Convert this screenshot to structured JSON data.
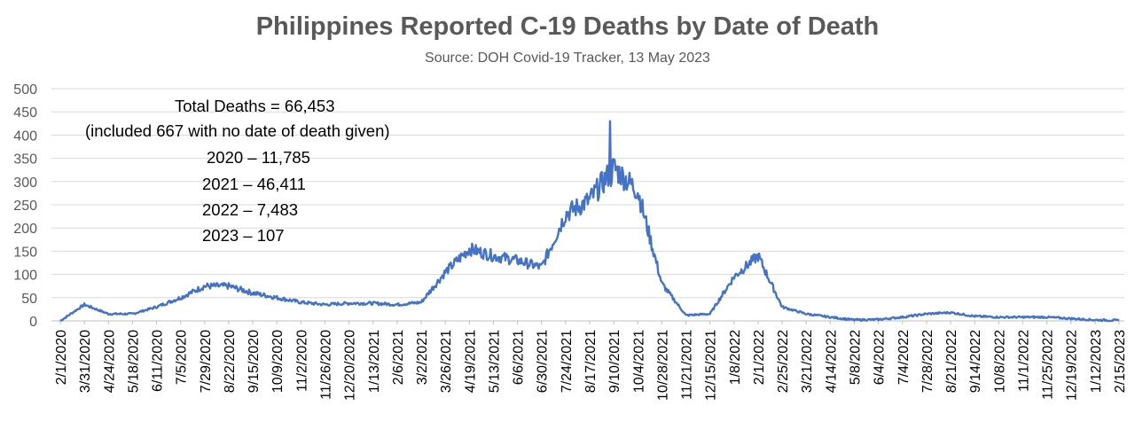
{
  "chart_data": {
    "type": "line",
    "title": "Philippines Reported C-19 Deaths by Date of Death",
    "subtitle": "Source: DOH Covid-19 Tracker, 13 May 2023",
    "xlabel": "",
    "ylabel": "",
    "ylim": [
      0,
      500
    ],
    "yticks": [
      "0",
      "50",
      "100",
      "150",
      "200",
      "250",
      "300",
      "350",
      "400",
      "450",
      "500"
    ],
    "grid": true,
    "legend": "none",
    "line_color": "#4472C4",
    "x_tick_labels": [
      "2/1/2020",
      "3/31/2020",
      "4/24/2020",
      "5/18/2020",
      "6/11/2020",
      "7/5/2020",
      "7/29/2020",
      "8/22/2020",
      "9/15/2020",
      "10/9/2020",
      "11/2/2020",
      "11/26/2020",
      "12/20/2020",
      "1/13/2021",
      "2/6/2021",
      "3/2/2021",
      "3/26/2021",
      "4/19/2021",
      "5/13/2021",
      "6/6/2021",
      "6/30/2021",
      "7/24/2021",
      "8/17/2021",
      "9/10/2021",
      "10/4/2021",
      "10/28/2021",
      "11/21/2021",
      "12/15/2021",
      "1/8/2022",
      "2/1/2022",
      "2/25/2022",
      "3/21/2022",
      "4/14/2022",
      "5/8/2022",
      "6/4/2022",
      "7/4/2022",
      "7/28/2022",
      "8/21/2022",
      "9/14/2022",
      "10/8/2022",
      "11/1/2022",
      "11/25/2022",
      "12/19/2022",
      "1/12/2023",
      "2/15/2023"
    ],
    "annotations": [
      "Total Deaths = 66,453",
      "(included 667 with no date of death given)",
      "2020 – 11,785",
      "2021 – 46,411",
      "2022 – 7,483",
      "2023 – 107"
    ],
    "series": [
      {
        "x": [
          "2/1/2020",
          "3/31/2020",
          "4/24/2020",
          "5/18/2020",
          "6/11/2020",
          "7/5/2020",
          "7/29/2020",
          "8/22/2020",
          "9/15/2020",
          "10/9/2020",
          "11/2/2020",
          "11/26/2020",
          "12/20/2020",
          "1/13/2021",
          "2/6/2021",
          "3/2/2021",
          "3/26/2021",
          "4/19/2021",
          "5/13/2021",
          "6/6/2021",
          "6/30/2021",
          "7/24/2021",
          "8/17/2021",
          "9/10/2021",
          "10/4/2021",
          "10/28/2021",
          "11/21/2021",
          "12/15/2021",
          "1/8/2022",
          "2/1/2022",
          "2/25/2022",
          "3/21/2022",
          "4/14/2022",
          "5/8/2022",
          "6/4/2022",
          "7/4/2022",
          "7/28/2022",
          "8/21/2022",
          "9/14/2022",
          "10/8/2022",
          "11/1/2022",
          "11/25/2022",
          "12/19/2022",
          "1/12/2023",
          "2/15/2023"
        ],
        "values": [
          0,
          35,
          15,
          15,
          30,
          50,
          75,
          75,
          60,
          50,
          40,
          35,
          38,
          38,
          35,
          40,
          105,
          155,
          140,
          130,
          115,
          230,
          260,
          330,
          280,
          80,
          12,
          15,
          95,
          140,
          30,
          15,
          8,
          2,
          3,
          8,
          15,
          18,
          10,
          8,
          8,
          8,
          5,
          2,
          1
        ]
      }
    ]
  }
}
